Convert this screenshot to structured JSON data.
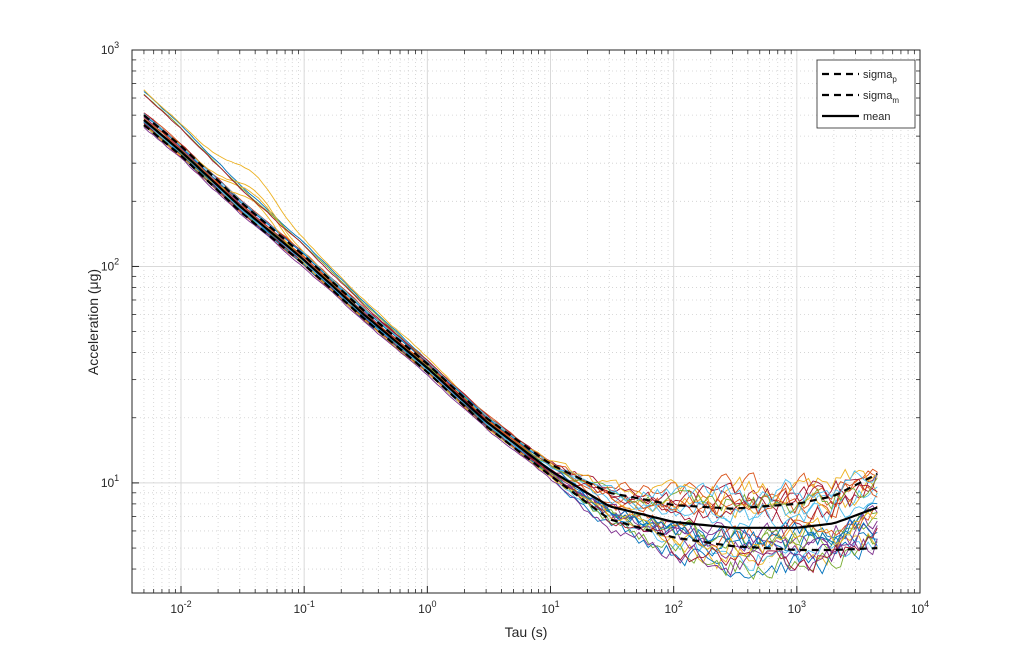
{
  "chart_data": {
    "type": "line",
    "xscale": "log",
    "yscale": "log",
    "xlabel": "Tau (s)",
    "ylabel": "Acceleration (μg)",
    "xlim": [
      0.004,
      10000
    ],
    "ylim": [
      3.1,
      1000
    ],
    "grid": true,
    "minor_grid": true,
    "x_ticks": [
      {
        "value": 0.01,
        "base": "10",
        "exp": "-2"
      },
      {
        "value": 0.1,
        "base": "10",
        "exp": "-1"
      },
      {
        "value": 1,
        "base": "10",
        "exp": "0"
      },
      {
        "value": 10,
        "base": "10",
        "exp": "1"
      },
      {
        "value": 100,
        "base": "10",
        "exp": "2"
      },
      {
        "value": 1000,
        "base": "10",
        "exp": "3"
      },
      {
        "value": 10000,
        "base": "10",
        "exp": "4"
      }
    ],
    "y_ticks": [
      {
        "value": 10,
        "base": "10",
        "exp": "1"
      },
      {
        "value": 100,
        "base": "10",
        "exp": "2"
      },
      {
        "value": 1000,
        "base": "10",
        "exp": "3"
      }
    ],
    "legend": {
      "placement": "top-right",
      "entries": [
        {
          "label": "sigma",
          "sub": "p",
          "style": "dashed",
          "color": "#000000"
        },
        {
          "label": "sigma",
          "sub": "m",
          "style": "dashed",
          "color": "#000000"
        },
        {
          "label": "mean",
          "sub": "",
          "style": "solid",
          "color": "#000000"
        }
      ]
    },
    "series": [
      {
        "name": "sigma_p",
        "color": "#000000",
        "style": "dashed",
        "x": [
          0.005,
          0.01,
          0.03,
          0.1,
          0.3,
          1,
          3,
          10,
          30,
          100,
          300,
          1000,
          2000,
          4500
        ],
        "y": [
          500,
          360,
          200,
          112,
          63,
          35.5,
          20,
          12.2,
          9.0,
          7.9,
          7.6,
          8.0,
          8.7,
          11.0
        ]
      },
      {
        "name": "sigma_m",
        "color": "#000000",
        "style": "dashed",
        "x": [
          0.005,
          0.01,
          0.03,
          0.1,
          0.3,
          1,
          3,
          10,
          30,
          100,
          300,
          1000,
          2000,
          4500
        ],
        "y": [
          450,
          325,
          180,
          102,
          58,
          32.5,
          18.3,
          10.8,
          6.8,
          5.6,
          5.1,
          4.9,
          4.9,
          5.0
        ]
      },
      {
        "name": "mean",
        "color": "#000000",
        "style": "solid",
        "x": [
          0.005,
          0.01,
          0.03,
          0.1,
          0.3,
          1,
          3,
          10,
          30,
          100,
          300,
          1000,
          2000,
          4500
        ],
        "y": [
          475,
          340,
          190,
          107,
          60.5,
          34,
          19.2,
          11.4,
          7.8,
          6.6,
          6.2,
          6.2,
          6.5,
          7.7
        ]
      }
    ],
    "runs_count": 28,
    "run_colors": [
      "#0072BD",
      "#D95319",
      "#EDB120",
      "#7E2F8E",
      "#77AC30",
      "#4DBEEE",
      "#A2142F"
    ]
  }
}
